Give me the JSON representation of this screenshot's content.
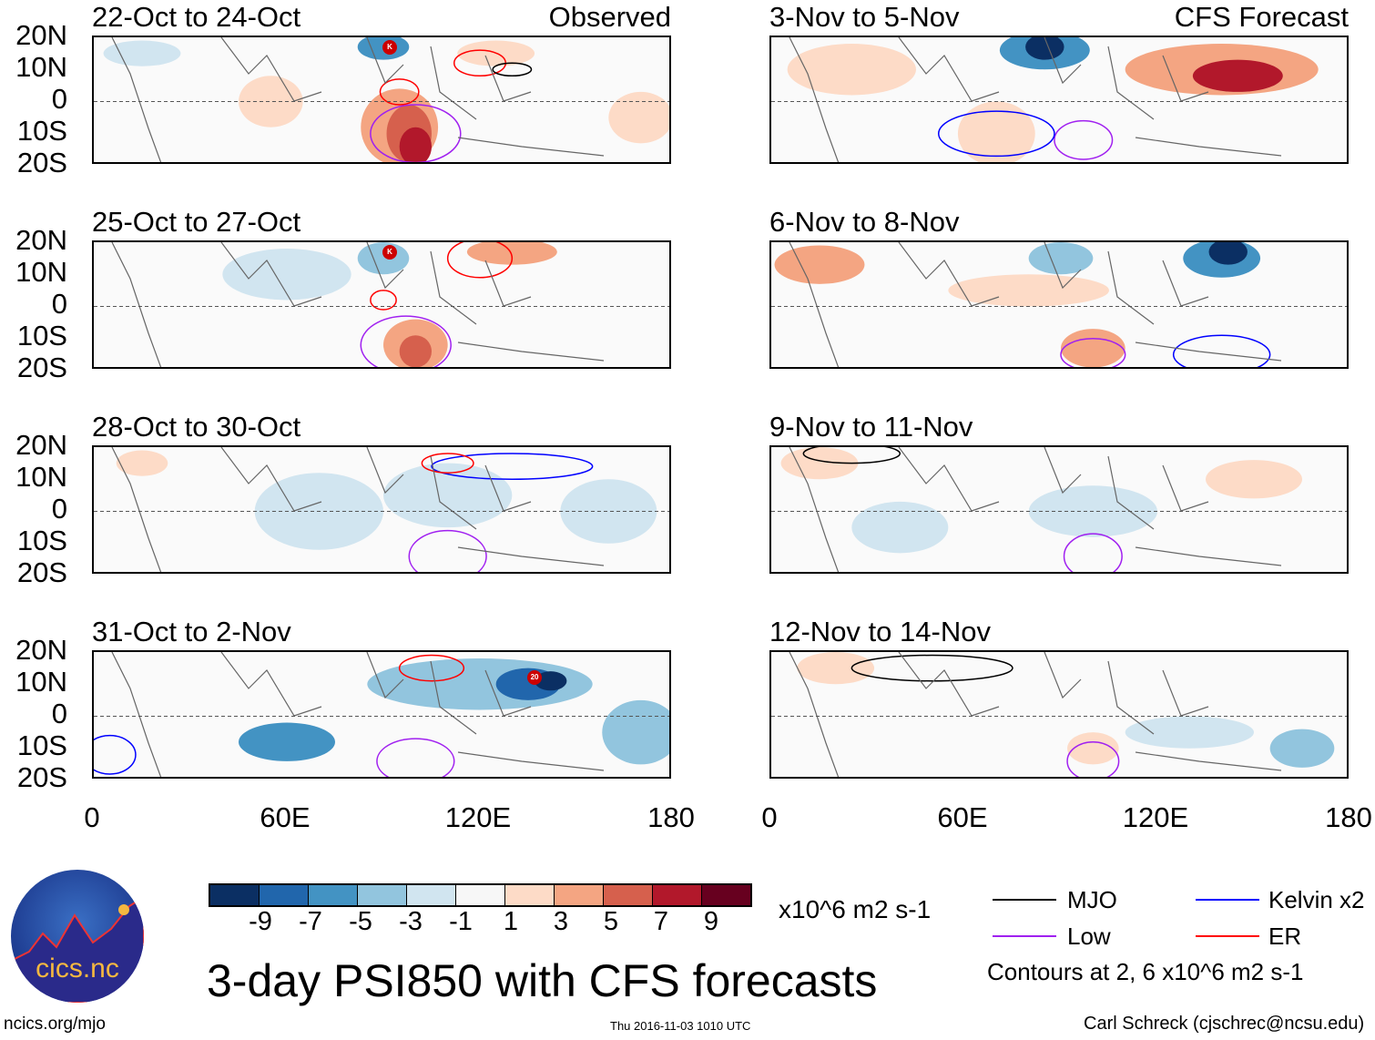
{
  "panels": [
    {
      "title": "22-Oct to 24-Oct",
      "tag": "Observed",
      "markers": [
        {
          "label": "K"
        }
      ]
    },
    {
      "title": "3-Nov to 5-Nov",
      "tag": "CFS Forecast",
      "markers": []
    },
    {
      "title": "25-Oct to 27-Oct",
      "tag": "",
      "markers": [
        {
          "label": "K"
        }
      ]
    },
    {
      "title": "6-Nov to 8-Nov",
      "tag": "",
      "markers": []
    },
    {
      "title": "28-Oct to 30-Oct",
      "tag": "",
      "markers": []
    },
    {
      "title": "9-Nov to 11-Nov",
      "tag": "",
      "markers": []
    },
    {
      "title": "31-Oct to 2-Nov",
      "tag": "",
      "markers": [
        {
          "label": "20"
        }
      ]
    },
    {
      "title": "12-Nov to 14-Nov",
      "tag": "",
      "markers": []
    }
  ],
  "lat_labels": [
    "20N",
    "10N",
    "0",
    "10S",
    "20S"
  ],
  "lon_labels": [
    "0",
    "60E",
    "120E",
    "180"
  ],
  "colorbar": {
    "colors": [
      "#0b2f63",
      "#2166ac",
      "#4393c3",
      "#92c5de",
      "#d1e5f0",
      "#f7f7f7",
      "#fddbc7",
      "#f4a582",
      "#d6604d",
      "#b2182b",
      "#67001f"
    ],
    "labels": [
      "-9",
      "-7",
      "-5",
      "-3",
      "-1",
      "1",
      "3",
      "5",
      "7",
      "9"
    ],
    "units": "x10^6 m2 s-1"
  },
  "legend": {
    "items": [
      {
        "label": "MJO",
        "color": "#000000"
      },
      {
        "label": "Kelvin x2",
        "color": "#0000ff"
      },
      {
        "label": "Low",
        "color": "#a020f0"
      },
      {
        "label": "ER",
        "color": "#ff0000"
      }
    ],
    "note": "Contours at 2, 6 x10^6 m2 s-1"
  },
  "title": "3-day PSI850 with CFS forecasts",
  "logo_text": "cics.nc",
  "logo_ring_text": "Cooperative Institute for Climate and Satellites",
  "url": "ncics.org/mjo",
  "timestamp": "Thu 2016-11-03 1010 UTC",
  "credit": "Carl Schreck (cjschrec@ncsu.edu)"
}
